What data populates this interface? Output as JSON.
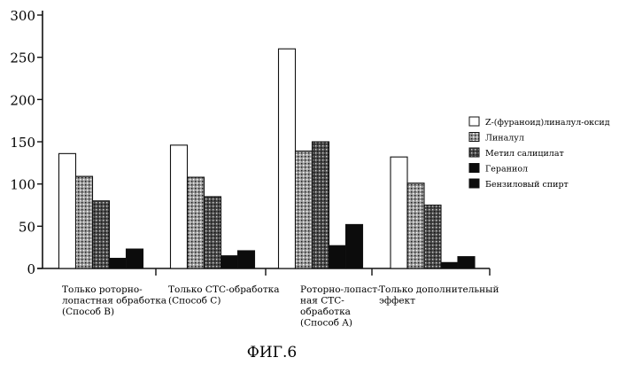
{
  "chart_data": {
    "type": "bar",
    "title": "",
    "xlabel": "",
    "ylabel": "",
    "ylim": [
      0,
      300
    ],
    "yticks": [
      0,
      50,
      100,
      150,
      200,
      250,
      300
    ],
    "grid": false,
    "legend_position": "right",
    "categories": [
      [
        "Только роторно-",
        "лопастная обработка",
        "(Способ B)"
      ],
      [
        "Только СТС-обработка",
        "(Способ C)"
      ],
      [
        "Роторно-лопаст-",
        "ная СТС-",
        "обработка",
        "(Способ A)"
      ],
      [
        "Только дополнительный",
        "эффект"
      ]
    ],
    "series": [
      {
        "name": "Z-(фураноид)линалул-оксид",
        "pattern": "white",
        "values": [
          136,
          146,
          260,
          132
        ]
      },
      {
        "name": "Линалул",
        "pattern": "dots-light",
        "values": [
          109,
          108,
          139,
          101
        ]
      },
      {
        "name": "Метил салицилат",
        "pattern": "dots-dark",
        "values": [
          80,
          85,
          150,
          75
        ]
      },
      {
        "name": "Гераниол",
        "pattern": "black",
        "values": [
          12,
          15,
          27,
          7
        ]
      },
      {
        "name": "Бензиловый спирт",
        "pattern": "black",
        "values": [
          23,
          21,
          52,
          14
        ]
      }
    ]
  },
  "caption": "ФИГ.6"
}
